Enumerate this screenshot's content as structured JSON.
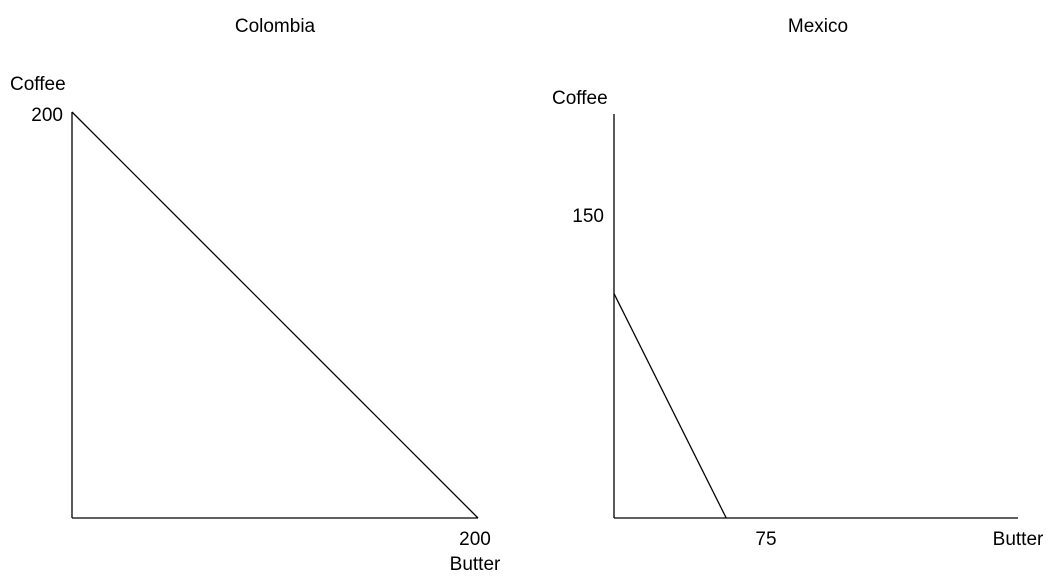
{
  "chart_data": [
    {
      "type": "line",
      "title": "Colombia",
      "xlabel": "Butter",
      "ylabel": "Coffee",
      "xlim": [
        0,
        200
      ],
      "ylim": [
        0,
        200
      ],
      "x_ticks": [
        "200"
      ],
      "y_ticks": [
        "200"
      ],
      "series": [
        {
          "x": [
            0,
            200
          ],
          "y": [
            200,
            0
          ]
        }
      ],
      "grid": false
    },
    {
      "type": "line",
      "title": "Mexico",
      "xlabel": "Butter",
      "ylabel": "Coffee",
      "xlim": [
        0,
        270
      ],
      "ylim": [
        0,
        270
      ],
      "x_ticks": [
        "75"
      ],
      "y_ticks": [
        "150"
      ],
      "series": [
        {
          "x": [
            0,
            75
          ],
          "y": [
            150,
            0
          ]
        }
      ],
      "grid": false
    }
  ]
}
